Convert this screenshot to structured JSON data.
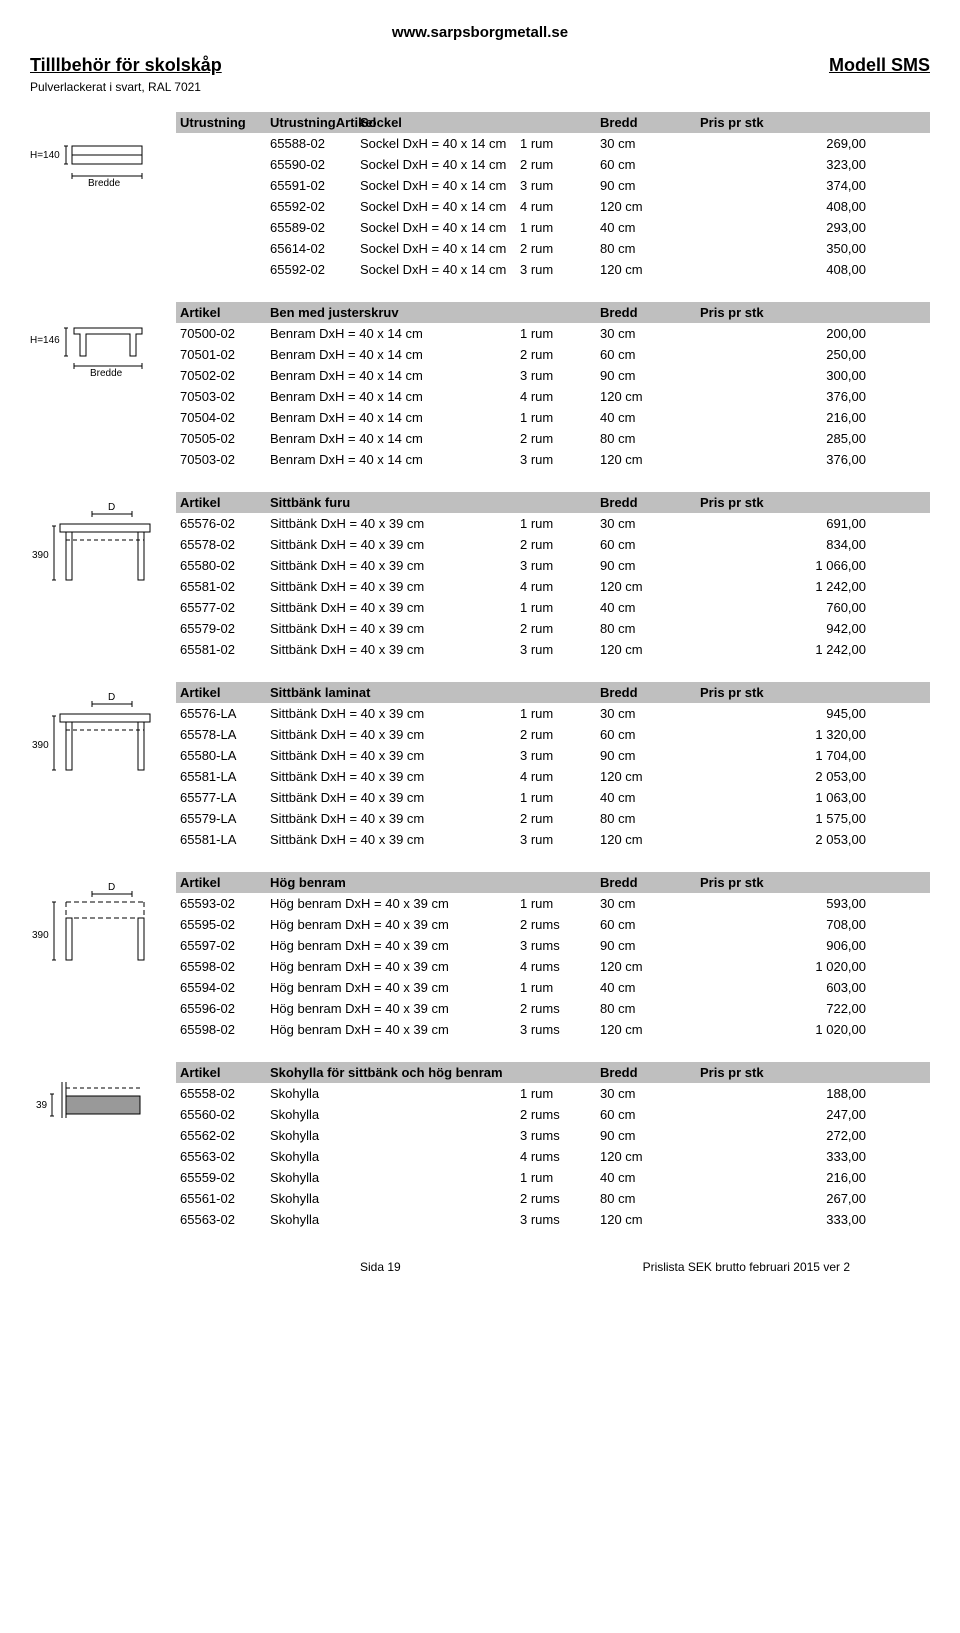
{
  "header_url": "www.sarpsborgmetall.se",
  "page_title": "Tilllbehör för skolskåp",
  "page_model": "Modell SMS",
  "subtitle": "Pulverlackerat i svart, RAL 7021",
  "col_labels": {
    "artikel": "Artikel",
    "bredd": "Bredd",
    "pris": "Pris pr stk"
  },
  "footer": {
    "page": "Sida 19",
    "version": "Prislista SEK brutto februari 2015 ver 2"
  },
  "sections": [
    {
      "name": "Sockel",
      "head2": "Sockel",
      "diagram": "sockel",
      "utrustning": true,
      "rows": [
        [
          "65588-02",
          "Sockel DxH = 40 x 14 cm",
          "1 rum",
          "30 cm",
          "269,00"
        ],
        [
          "65590-02",
          "Sockel DxH = 40 x 14 cm",
          "2 rum",
          "60 cm",
          "323,00"
        ],
        [
          "65591-02",
          "Sockel DxH = 40 x 14 cm",
          "3 rum",
          "90 cm",
          "374,00"
        ],
        [
          "65592-02",
          "Sockel DxH = 40 x 14 cm",
          "4 rum",
          "120 cm",
          "408,00"
        ],
        [
          "65589-02",
          "Sockel DxH = 40 x 14 cm",
          "1 rum",
          "40 cm",
          "293,00"
        ],
        [
          "65614-02",
          "Sockel DxH = 40 x 14 cm",
          "2 rum",
          "80 cm",
          "350,00"
        ],
        [
          "65592-02",
          "Sockel DxH = 40 x 14 cm",
          "3 rum",
          "120 cm",
          "408,00"
        ]
      ]
    },
    {
      "name": "Ben med justerskruv",
      "head2": "Ben med justerskruv",
      "diagram": "benram",
      "rows": [
        [
          "70500-02",
          "Benram DxH = 40 x 14 cm",
          "1 rum",
          "30 cm",
          "200,00"
        ],
        [
          "70501-02",
          "Benram DxH = 40 x 14 cm",
          "2 rum",
          "60 cm",
          "250,00"
        ],
        [
          "70502-02",
          "Benram DxH = 40 x 14 cm",
          "3 rum",
          "90 cm",
          "300,00"
        ],
        [
          "70503-02",
          "Benram DxH = 40 x 14 cm",
          "4 rum",
          "120 cm",
          "376,00"
        ],
        [
          "70504-02",
          "Benram DxH = 40 x 14 cm",
          "1 rum",
          "40 cm",
          "216,00"
        ],
        [
          "70505-02",
          "Benram DxH = 40 x 14 cm",
          "2 rum",
          "80 cm",
          "285,00"
        ],
        [
          "70503-02",
          "Benram DxH = 40 x 14 cm",
          "3 rum",
          "120 cm",
          "376,00"
        ]
      ]
    },
    {
      "name": "Sittbänk furu",
      "head2": "Sittbänk furu",
      "diagram": "sittbank",
      "rows": [
        [
          "65576-02",
          "Sittbänk DxH = 40 x 39 cm",
          "1 rum",
          "30 cm",
          "691,00"
        ],
        [
          "65578-02",
          "Sittbänk DxH = 40 x 39 cm",
          "2 rum",
          "60 cm",
          "834,00"
        ],
        [
          "65580-02",
          "Sittbänk DxH = 40 x 39 cm",
          "3 rum",
          "90 cm",
          "1 066,00"
        ],
        [
          "65581-02",
          "Sittbänk DxH = 40 x 39 cm",
          "4 rum",
          "120 cm",
          "1 242,00"
        ],
        [
          "65577-02",
          "Sittbänk DxH = 40 x 39 cm",
          "1 rum",
          "40 cm",
          "760,00"
        ],
        [
          "65579-02",
          "Sittbänk DxH = 40 x 39 cm",
          "2 rum",
          "80 cm",
          "942,00"
        ],
        [
          "65581-02",
          "Sittbänk DxH = 40 x 39 cm",
          "3 rum",
          "120 cm",
          "1 242,00"
        ]
      ]
    },
    {
      "name": "Sittbänk laminat",
      "head2": "Sittbänk laminat",
      "diagram": "sittbank",
      "rows": [
        [
          "65576-LA",
          "Sittbänk DxH = 40 x 39 cm",
          "1 rum",
          "30 cm",
          "945,00"
        ],
        [
          "65578-LA",
          "Sittbänk DxH = 40 x 39 cm",
          "2 rum",
          "60 cm",
          "1 320,00"
        ],
        [
          "65580-LA",
          "Sittbänk DxH = 40 x 39 cm",
          "3 rum",
          "90 cm",
          "1 704,00"
        ],
        [
          "65581-LA",
          "Sittbänk DxH = 40 x 39 cm",
          "4 rum",
          "120 cm",
          "2 053,00"
        ],
        [
          "65577-LA",
          "Sittbänk DxH = 40 x 39 cm",
          "1 rum",
          "40 cm",
          "1 063,00"
        ],
        [
          "65579-LA",
          "Sittbänk DxH = 40 x 39 cm",
          "2 rum",
          "80 cm",
          "1 575,00"
        ],
        [
          "65581-LA",
          "Sittbänk DxH = 40 x 39 cm",
          "3 rum",
          "120 cm",
          "2 053,00"
        ]
      ]
    },
    {
      "name": "Hög benram",
      "head2": "Hög benram",
      "diagram": "hogbenram",
      "rows": [
        [
          "65593-02",
          "Hög benram DxH = 40 x 39 cm",
          "1 rum",
          "30 cm",
          "593,00"
        ],
        [
          "65595-02",
          "Hög benram DxH = 40 x 39 cm",
          "2 rums",
          "60 cm",
          "708,00"
        ],
        [
          "65597-02",
          "Hög benram DxH = 40 x 39 cm",
          "3 rums",
          "90 cm",
          "906,00"
        ],
        [
          "65598-02",
          "Hög benram DxH = 40 x 39 cm",
          "4 rums",
          "120 cm",
          "1 020,00"
        ],
        [
          "65594-02",
          "Hög benram DxH = 40 x 39 cm",
          "1 rum",
          "40 cm",
          "603,00"
        ],
        [
          "65596-02",
          "Hög benram DxH = 40 x 39 cm",
          "2 rums",
          "80 cm",
          "722,00"
        ],
        [
          "65598-02",
          "Hög benram DxH = 40 x 39 cm",
          "3 rums",
          "120 cm",
          "1 020,00"
        ]
      ]
    },
    {
      "name": "Skohylla för sittbänk och hög benram",
      "head2": "Skohylla för sittbänk och hög benram",
      "diagram": "skohylla",
      "rows": [
        [
          "65558-02",
          "Skohylla",
          "1 rum",
          "30 cm",
          "188,00"
        ],
        [
          "65560-02",
          "Skohylla",
          "2 rums",
          "60 cm",
          "247,00"
        ],
        [
          "65562-02",
          "Skohylla",
          "3 rums",
          "90 cm",
          "272,00"
        ],
        [
          "65563-02",
          "Skohylla",
          "4 rums",
          "120 cm",
          "333,00"
        ],
        [
          "65559-02",
          "Skohylla",
          "1 rum",
          "40 cm",
          "216,00"
        ],
        [
          "65561-02",
          "Skohylla",
          "2 rums",
          "80 cm",
          "267,00"
        ],
        [
          "65563-02",
          "Skohylla",
          "3 rums",
          "120 cm",
          "333,00"
        ]
      ]
    }
  ],
  "diagram_labels": {
    "sockel_h": "H=140",
    "bredde": "Bredde",
    "benram_h": "H=146",
    "sittbank_h": "390",
    "hogbenram_h": "390",
    "skohylla_h": "39",
    "D": "D"
  }
}
